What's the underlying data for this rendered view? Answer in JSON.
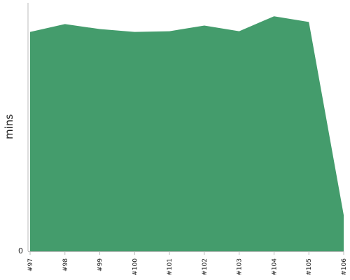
{
  "chart_data": {
    "type": "area",
    "ylabel": "mins",
    "categories": [
      "#97",
      "#98",
      "#99",
      "#100",
      "#101",
      "#102",
      "#103",
      "#104",
      "#105",
      "#106"
    ],
    "series": [
      {
        "values": [
          30.9,
          32.0,
          31.3,
          30.9,
          31.0,
          31.8,
          31.0,
          33.1,
          32.3,
          5.1
        ]
      }
    ],
    "ylim": [
      0,
      35
    ],
    "yticks": [
      {
        "value": 0,
        "label": "0"
      }
    ],
    "grid": false,
    "colors": {
      "fill": "#449c6c",
      "axis": "#bbbbbb"
    }
  }
}
